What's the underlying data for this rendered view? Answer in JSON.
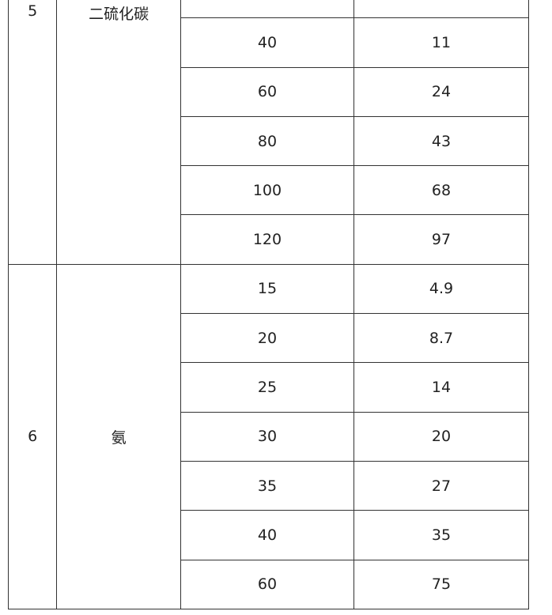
{
  "groups": [
    {
      "no": "5",
      "name": "二硫化碳",
      "rows": [
        [
          "",
          ""
        ],
        [
          "40",
          "11"
        ],
        [
          "60",
          "24"
        ],
        [
          "80",
          "43"
        ],
        [
          "100",
          "68"
        ],
        [
          "120",
          "97"
        ]
      ]
    },
    {
      "no": "6",
      "name": "氨",
      "rows": [
        [
          "15",
          "4.9"
        ],
        [
          "20",
          "8.7"
        ],
        [
          "25",
          "14"
        ],
        [
          "30",
          "20"
        ],
        [
          "35",
          "27"
        ],
        [
          "40",
          "35"
        ],
        [
          "60",
          "75"
        ]
      ]
    }
  ]
}
